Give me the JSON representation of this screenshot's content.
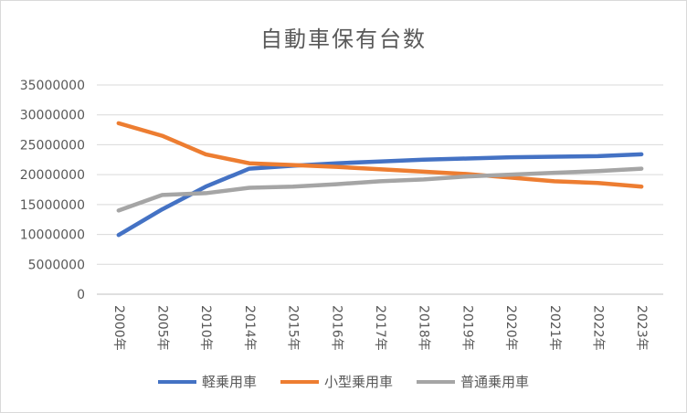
{
  "chart_data": {
    "type": "line",
    "title": "自動車保有台数",
    "categories": [
      "2000年",
      "2005年",
      "2010年",
      "2014年",
      "2015年",
      "2016年",
      "2017年",
      "2018年",
      "2019年",
      "2020年",
      "2021年",
      "2022年",
      "2023年"
    ],
    "ylim": [
      0,
      35000000
    ],
    "yticks": [
      0,
      5000000,
      10000000,
      15000000,
      20000000,
      25000000,
      30000000,
      35000000
    ],
    "grid": true,
    "legend_position": "bottom",
    "series": [
      {
        "name": "軽乗用車",
        "color": "#4472c4",
        "values": [
          9900000,
          14200000,
          18000000,
          21000000,
          21500000,
          21900000,
          22200000,
          22500000,
          22700000,
          22900000,
          23000000,
          23100000,
          23400000
        ]
      },
      {
        "name": "小型乗用車",
        "color": "#ed7d31",
        "values": [
          28600000,
          26500000,
          23400000,
          21900000,
          21600000,
          21300000,
          20900000,
          20500000,
          20100000,
          19500000,
          18900000,
          18600000,
          18000000
        ]
      },
      {
        "name": "普通乗用車",
        "color": "#a5a5a5",
        "values": [
          14000000,
          16600000,
          16900000,
          17800000,
          18000000,
          18400000,
          18900000,
          19200000,
          19700000,
          20000000,
          20300000,
          20600000,
          21000000
        ]
      }
    ]
  }
}
